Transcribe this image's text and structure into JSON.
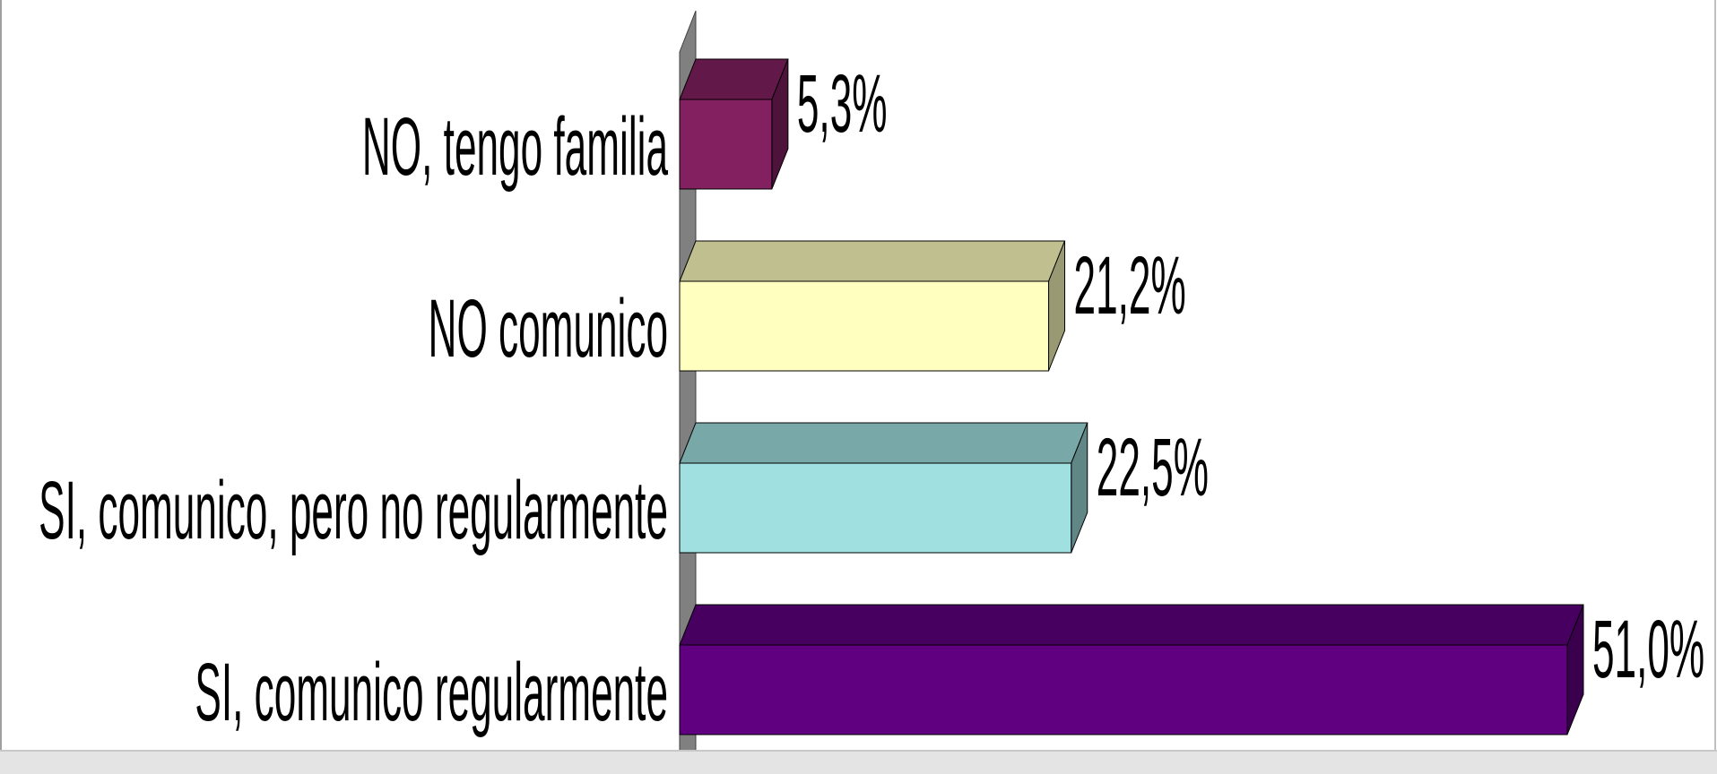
{
  "chart_data": {
    "type": "bar3d-horizontal",
    "categories": [
      "NO, tengo familia",
      "NO comunico",
      "SI, comunico, pero no regularmente",
      "SI, comunico regularmente"
    ],
    "values": [
      5.3,
      21.2,
      22.5,
      51.0
    ],
    "value_labels": [
      "5,3%",
      "21,2%",
      "22,5%",
      "51,0%"
    ],
    "colors": [
      "#822060",
      "#ffffc0",
      "#a0e0e0",
      "#600080"
    ]
  }
}
